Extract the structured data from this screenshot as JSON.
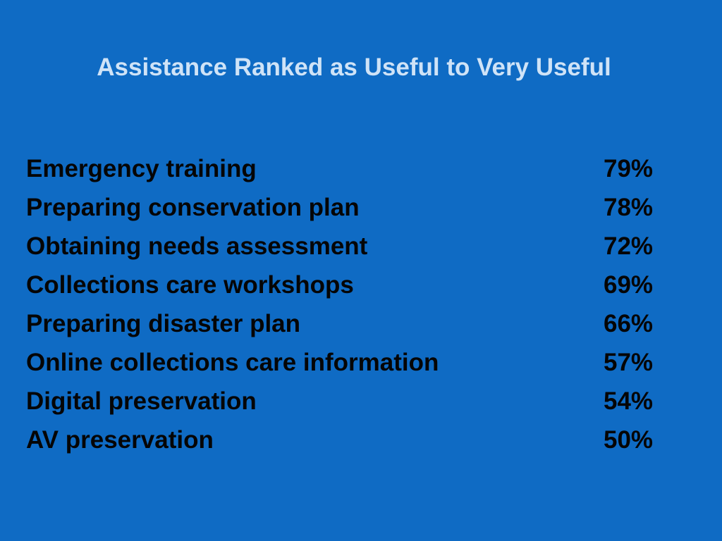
{
  "slide": {
    "title": "Assistance Ranked as Useful to Very Useful",
    "items": [
      {
        "label": "Emergency training",
        "value": "79%"
      },
      {
        "label": "Preparing conservation plan",
        "value": "78%"
      },
      {
        "label": "Obtaining needs assessment",
        "value": "72%"
      },
      {
        "label": "Collections care workshops",
        "value": "69%"
      },
      {
        "label": "Preparing disaster plan",
        "value": "66%"
      },
      {
        "label": "Online collections care information",
        "value": "57%"
      },
      {
        "label": "Digital preservation",
        "value": "54%"
      },
      {
        "label": "AV preservation",
        "value": "50%"
      }
    ]
  },
  "colors": {
    "background": "#0f6bc4",
    "title": "#cfe3f7",
    "body_text": "#050505"
  }
}
